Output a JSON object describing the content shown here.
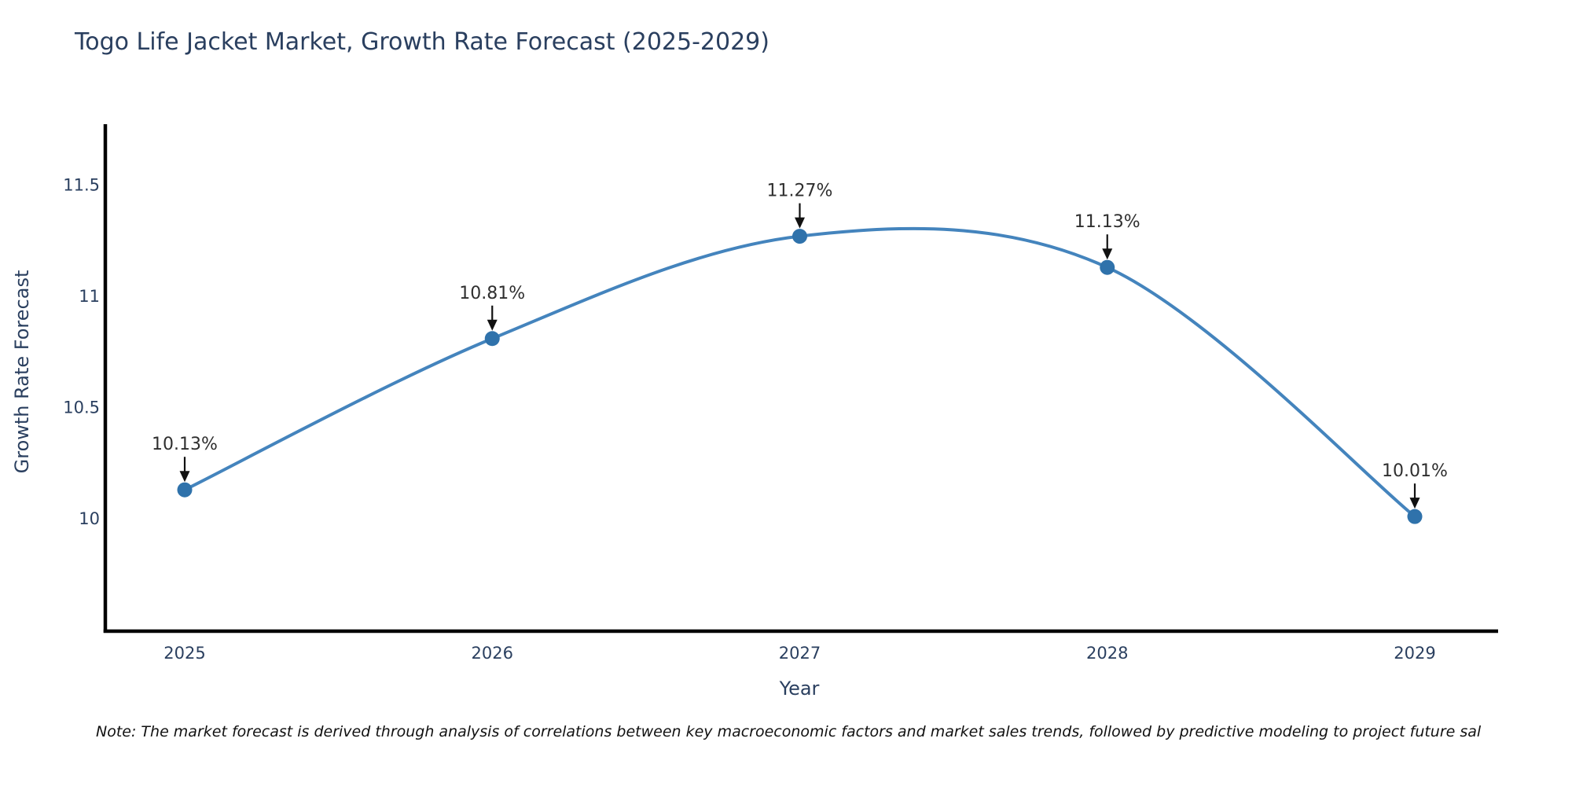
{
  "page": {
    "title": "Togo Life Jacket Market, Growth Rate Forecast (2025-2029)",
    "note": "Note: The market forecast is derived through analysis of correlations between key macroeconomic factors and market sales trends, followed by predictive modeling to project future sal"
  },
  "chart_data": {
    "type": "line",
    "title": "Togo Life Jacket Market, Growth Rate Forecast (2025-2029)",
    "xlabel": "Year",
    "ylabel": "Growth Rate Forecast",
    "x": [
      2025,
      2026,
      2027,
      2028,
      2029
    ],
    "x_tick_labels": [
      "2025",
      "2026",
      "2027",
      "2028",
      "2029"
    ],
    "values": [
      10.13,
      10.81,
      11.27,
      11.13,
      10.01
    ],
    "point_labels": [
      "10.13%",
      "10.81%",
      "11.27%",
      "11.13%",
      "10.01%"
    ],
    "unit": "%",
    "y_ticks": [
      10,
      10.5,
      11,
      11.5
    ],
    "y_tick_labels": [
      "10",
      "10.5",
      "11",
      "11.5"
    ],
    "xlim": [
      2024.73,
      2029.27
    ],
    "ylim": [
      9.49,
      11.77
    ],
    "line_shape": "spline",
    "grid": false,
    "legend": "none",
    "annotation_style": "value label with down arrow above each point",
    "colors": {
      "line": "#4484bd",
      "marker": "#2f72ab",
      "spine": "#000000",
      "axis_text": "#2a3f5f",
      "annotation_text": "#2f2f2f",
      "arrow": "#111111",
      "title": "#2a3f5f"
    }
  }
}
